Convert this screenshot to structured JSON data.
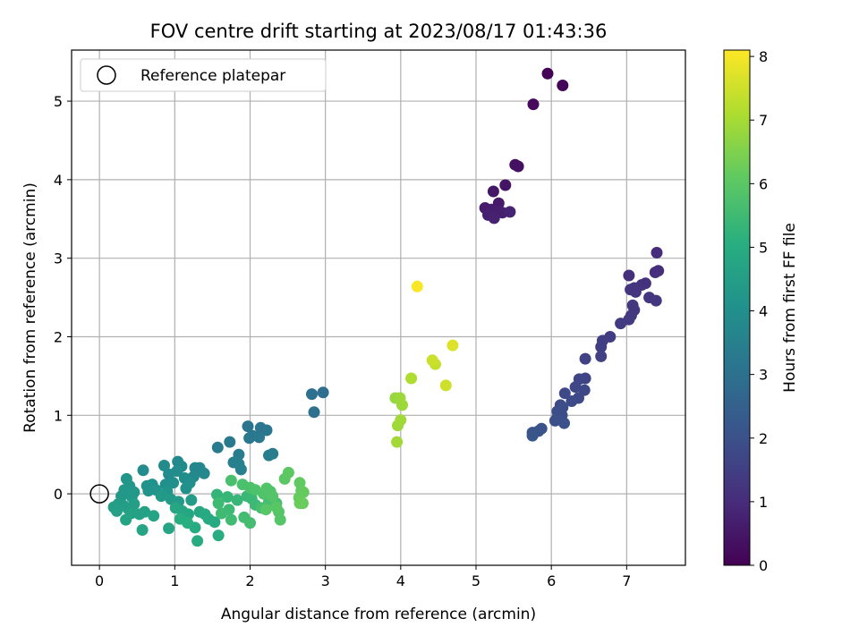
{
  "chart_data": {
    "type": "scatter",
    "title": "FOV centre drift starting at 2023/08/17 01:43:36",
    "xlabel": "Angular distance from reference (arcmin)",
    "ylabel": "Rotation from reference (arcmin)",
    "xlim": [
      -0.37,
      7.78
    ],
    "ylim": [
      -0.91,
      5.65
    ],
    "xticks": [
      0,
      1,
      2,
      3,
      4,
      5,
      6,
      7
    ],
    "yticks": [
      0,
      1,
      2,
      3,
      4,
      5
    ],
    "grid": true,
    "legend": {
      "position": "top-left",
      "entries": [
        "Reference platepar"
      ]
    },
    "reference_point": {
      "x": 0,
      "y": 0,
      "label": "Reference platepar"
    },
    "colorbar": {
      "label": "Hours from first FF file",
      "range": [
        0,
        8.1
      ],
      "ticks": [
        0,
        1,
        2,
        3,
        4,
        5,
        6,
        7,
        8
      ],
      "colormap": "viridis"
    },
    "points": [
      [
        5.95,
        5.35,
        0.05
      ],
      [
        6.15,
        5.2,
        0.1
      ],
      [
        5.76,
        4.96,
        0.2
      ],
      [
        5.52,
        4.19,
        0.35
      ],
      [
        5.56,
        4.17,
        0.4
      ],
      [
        5.39,
        3.93,
        0.45
      ],
      [
        5.23,
        3.85,
        0.5
      ],
      [
        5.3,
        3.7,
        0.55
      ],
      [
        5.12,
        3.64,
        0.6
      ],
      [
        5.2,
        3.62,
        0.62
      ],
      [
        5.28,
        3.6,
        0.66
      ],
      [
        5.35,
        3.58,
        0.7
      ],
      [
        5.16,
        3.55,
        0.72
      ],
      [
        5.24,
        3.51,
        0.75
      ],
      [
        5.45,
        3.59,
        0.8
      ],
      [
        7.4,
        3.07,
        1.0
      ],
      [
        7.42,
        2.84,
        1.05
      ],
      [
        7.38,
        2.82,
        1.08
      ],
      [
        7.03,
        2.78,
        1.1
      ],
      [
        7.25,
        2.68,
        1.12
      ],
      [
        7.2,
        2.66,
        1.15
      ],
      [
        7.1,
        2.62,
        1.18
      ],
      [
        7.05,
        2.6,
        1.2
      ],
      [
        7.12,
        2.57,
        1.22
      ],
      [
        7.3,
        2.5,
        1.25
      ],
      [
        7.39,
        2.46,
        1.28
      ],
      [
        7.08,
        2.4,
        1.3
      ],
      [
        7.1,
        2.34,
        1.32
      ],
      [
        7.06,
        2.27,
        1.35
      ],
      [
        7.03,
        2.22,
        1.38
      ],
      [
        6.92,
        2.17,
        1.4
      ],
      [
        6.78,
        2.0,
        1.45
      ],
      [
        6.68,
        1.95,
        1.48
      ],
      [
        6.66,
        1.87,
        1.5
      ],
      [
        6.66,
        1.75,
        1.55
      ],
      [
        6.45,
        1.72,
        1.6
      ],
      [
        6.45,
        1.47,
        1.65
      ],
      [
        6.37,
        1.46,
        1.68
      ],
      [
        6.32,
        1.36,
        1.72
      ],
      [
        6.44,
        1.32,
        1.75
      ],
      [
        6.18,
        1.28,
        1.78
      ],
      [
        6.36,
        1.22,
        1.8
      ],
      [
        6.27,
        1.18,
        1.82
      ],
      [
        6.12,
        1.13,
        1.85
      ],
      [
        6.15,
        1.1,
        1.88
      ],
      [
        6.08,
        1.05,
        1.9
      ],
      [
        6.14,
        1.0,
        1.92
      ],
      [
        6.08,
        0.97,
        1.95
      ],
      [
        6.05,
        0.93,
        1.98
      ],
      [
        6.17,
        0.9,
        2.0
      ],
      [
        5.87,
        0.83,
        2.05
      ],
      [
        5.83,
        0.8,
        2.08
      ],
      [
        5.75,
        0.78,
        2.1
      ],
      [
        5.75,
        0.74,
        2.15
      ],
      [
        2.97,
        1.29,
        2.9
      ],
      [
        2.82,
        1.27,
        2.95
      ],
      [
        2.85,
        1.04,
        3.0
      ],
      [
        1.97,
        0.86,
        3.1
      ],
      [
        2.14,
        0.84,
        3.15
      ],
      [
        2.22,
        0.81,
        3.18
      ],
      [
        2.03,
        0.74,
        3.2
      ],
      [
        1.99,
        0.71,
        3.22
      ],
      [
        2.12,
        0.72,
        3.25
      ],
      [
        1.73,
        0.66,
        3.3
      ],
      [
        1.57,
        0.59,
        3.35
      ],
      [
        1.85,
        0.5,
        3.38
      ],
      [
        2.3,
        0.51,
        3.4
      ],
      [
        2.25,
        0.49,
        3.42
      ],
      [
        1.78,
        0.4,
        3.45
      ],
      [
        1.85,
        0.38,
        3.48
      ],
      [
        1.88,
        0.31,
        3.5
      ],
      [
        1.27,
        0.33,
        3.7
      ],
      [
        1.33,
        0.33,
        3.72
      ],
      [
        1.39,
        0.26,
        3.75
      ],
      [
        1.25,
        0.22,
        3.78
      ],
      [
        1.04,
        0.41,
        3.8
      ],
      [
        1.09,
        0.35,
        3.82
      ],
      [
        0.86,
        0.36,
        3.85
      ],
      [
        1.03,
        0.29,
        3.88
      ],
      [
        0.58,
        0.3,
        3.9
      ],
      [
        0.92,
        0.25,
        3.92
      ],
      [
        1.13,
        0.2,
        3.95
      ],
      [
        1.2,
        0.14,
        3.98
      ],
      [
        0.98,
        0.14,
        4.0
      ],
      [
        0.88,
        0.12,
        4.02
      ],
      [
        0.7,
        0.12,
        4.05
      ],
      [
        0.63,
        0.1,
        4.08
      ],
      [
        1.15,
        0.07,
        4.1
      ],
      [
        0.65,
        0.04,
        4.12
      ],
      [
        0.75,
        0.05,
        4.15
      ],
      [
        0.9,
        0.03,
        4.18
      ],
      [
        0.36,
        0.19,
        4.2
      ],
      [
        0.4,
        0.1,
        4.22
      ],
      [
        0.33,
        0.05,
        4.25
      ],
      [
        0.46,
        0.02,
        4.28
      ],
      [
        0.29,
        -0.03,
        4.3
      ],
      [
        0.43,
        -0.04,
        4.32
      ],
      [
        0.82,
        -0.03,
        4.35
      ],
      [
        0.95,
        -0.07,
        4.38
      ],
      [
        1.05,
        -0.1,
        4.4
      ],
      [
        1.22,
        -0.08,
        4.42
      ],
      [
        0.25,
        -0.13,
        4.45
      ],
      [
        0.32,
        -0.15,
        4.48
      ],
      [
        0.46,
        -0.13,
        4.5
      ],
      [
        0.38,
        -0.19,
        4.52
      ],
      [
        0.19,
        -0.17,
        4.55
      ],
      [
        0.23,
        -0.22,
        4.58
      ],
      [
        0.42,
        -0.25,
        4.6
      ],
      [
        0.53,
        -0.26,
        4.62
      ],
      [
        0.6,
        -0.23,
        4.65
      ],
      [
        0.72,
        -0.28,
        4.68
      ],
      [
        0.35,
        -0.33,
        4.7
      ],
      [
        0.57,
        -0.46,
        4.72
      ],
      [
        0.92,
        -0.44,
        4.75
      ],
      [
        1.01,
        -0.18,
        4.78
      ],
      [
        1.1,
        -0.22,
        4.8
      ],
      [
        1.18,
        -0.26,
        4.82
      ],
      [
        1.33,
        -0.23,
        4.85
      ],
      [
        1.4,
        -0.26,
        4.88
      ],
      [
        1.45,
        -0.32,
        4.9
      ],
      [
        1.53,
        -0.36,
        4.92
      ],
      [
        1.27,
        -0.43,
        4.95
      ],
      [
        1.3,
        -0.6,
        4.98
      ],
      [
        1.58,
        -0.53,
        5.0
      ],
      [
        1.07,
        -0.32,
        5.02
      ],
      [
        1.17,
        -0.37,
        5.05
      ],
      [
        1.56,
        -0.01,
        5.3
      ],
      [
        1.7,
        -0.04,
        5.35
      ],
      [
        1.83,
        -0.08,
        5.38
      ],
      [
        1.96,
        -0.03,
        5.4
      ],
      [
        2.02,
        -0.06,
        5.42
      ],
      [
        2.07,
        -0.14,
        5.45
      ],
      [
        1.72,
        -0.2,
        5.48
      ],
      [
        1.58,
        -0.12,
        5.5
      ],
      [
        1.62,
        -0.25,
        5.52
      ],
      [
        1.75,
        -0.33,
        5.55
      ],
      [
        1.92,
        -0.3,
        5.58
      ],
      [
        2.0,
        -0.37,
        5.6
      ],
      [
        2.15,
        -0.18,
        5.62
      ],
      [
        2.25,
        -0.1,
        5.65
      ],
      [
        2.35,
        -0.12,
        5.68
      ],
      [
        1.75,
        0.17,
        5.7
      ],
      [
        1.9,
        0.12,
        5.72
      ],
      [
        2.0,
        0.08,
        5.75
      ],
      [
        2.07,
        0.05,
        5.78
      ],
      [
        2.18,
        0.0,
        5.8
      ],
      [
        2.27,
        0.03,
        5.82
      ],
      [
        2.22,
        0.07,
        5.85
      ],
      [
        2.3,
        -0.03,
        5.88
      ],
      [
        2.38,
        -0.23,
        5.9
      ],
      [
        2.4,
        -0.33,
        5.92
      ],
      [
        2.21,
        -0.2,
        5.95
      ],
      [
        2.35,
        -0.17,
        5.98
      ],
      [
        2.46,
        0.19,
        6.0
      ],
      [
        2.51,
        0.27,
        6.05
      ],
      [
        2.66,
        0.14,
        6.1
      ],
      [
        2.68,
        0.04,
        6.12
      ],
      [
        2.71,
        0.02,
        6.15
      ],
      [
        2.65,
        -0.05,
        6.18
      ],
      [
        2.7,
        -0.12,
        6.2
      ],
      [
        2.66,
        -0.12,
        6.22
      ],
      [
        3.93,
        1.22,
        6.8
      ],
      [
        3.99,
        1.22,
        6.85
      ],
      [
        4.02,
        1.13,
        6.88
      ],
      [
        3.96,
        0.87,
        6.9
      ],
      [
        4.0,
        0.94,
        6.92
      ],
      [
        3.95,
        0.66,
        6.95
      ],
      [
        4.14,
        1.47,
        7.1
      ],
      [
        4.46,
        1.65,
        7.4
      ],
      [
        4.42,
        1.7,
        7.45
      ],
      [
        4.6,
        1.38,
        7.5
      ],
      [
        4.69,
        1.89,
        7.7
      ],
      [
        4.22,
        2.64,
        8.05
      ]
    ]
  }
}
